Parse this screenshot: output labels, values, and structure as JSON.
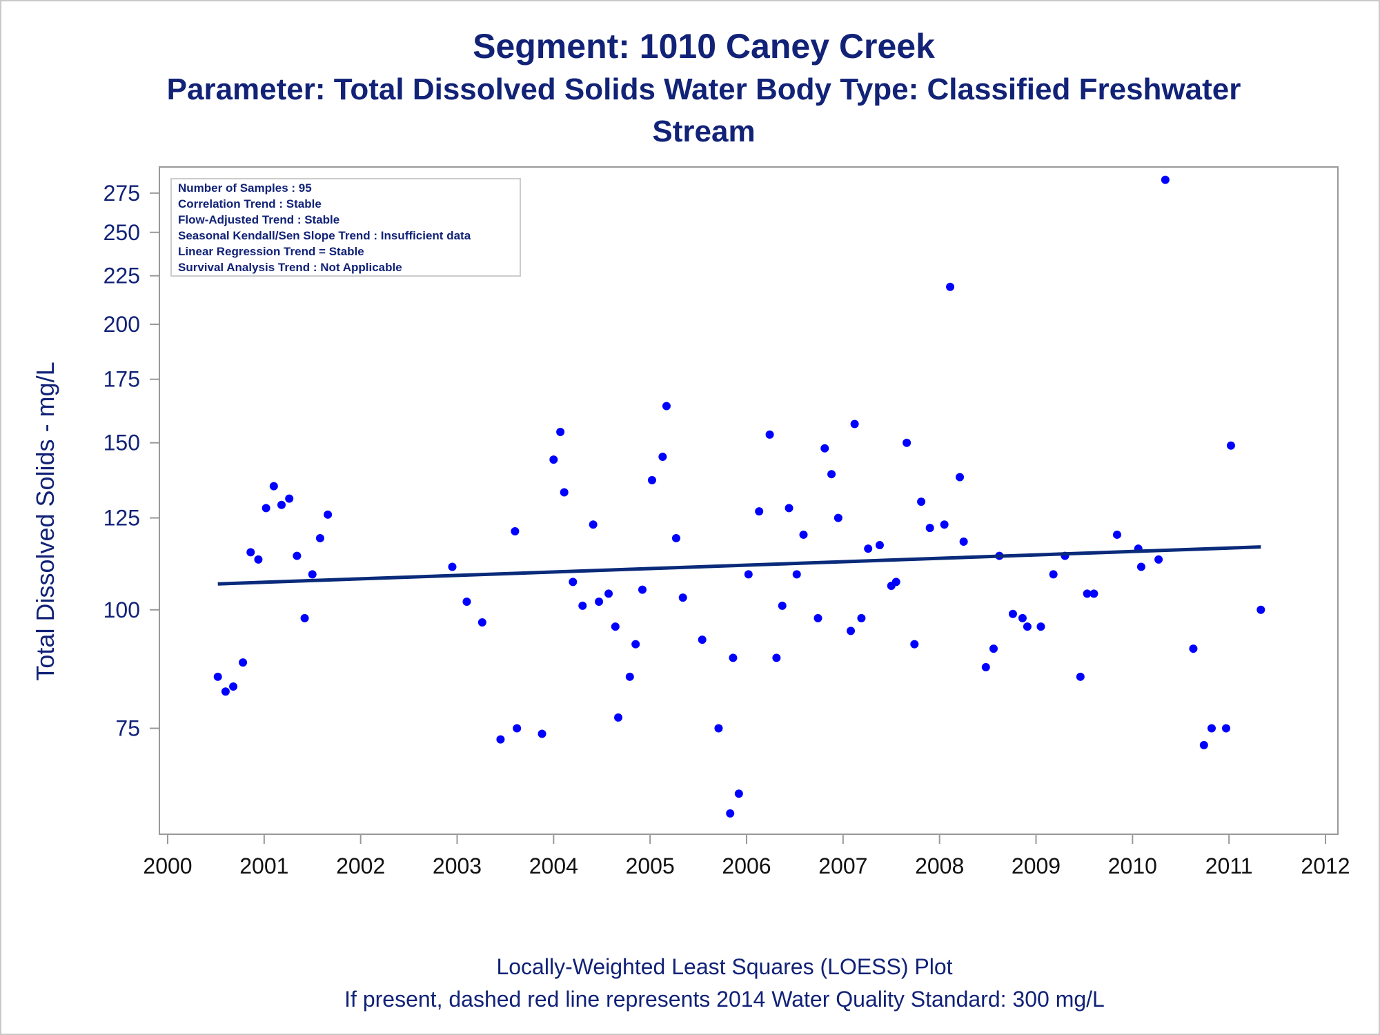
{
  "titles": {
    "line1": "Segment: 1010  Caney Creek",
    "line2": "Parameter: Total Dissolved Solids   Water Body Type: Classified Freshwater",
    "line3": "Stream"
  },
  "footnotes": {
    "line1": "Locally-Weighted Least Squares (LOESS) Plot",
    "line2": "If present, dashed red line represents 2014 Water Quality Standard: 300   mg/L"
  },
  "stats_box": [
    "Number of Samples : 95",
    "Correlation Trend : Stable",
    "Flow-Adjusted Trend : Stable",
    "Seasonal Kendall/Sen Slope Trend : Insufficient data",
    "Linear Regression Trend = Stable",
    "Survival Analysis Trend : Not Applicable"
  ],
  "colors": {
    "text": "#112277",
    "points": "#0000ff",
    "trend_line": "#0a2a7a",
    "axis": "#999999"
  },
  "chart_data": {
    "type": "scatter",
    "xlabel": "",
    "ylabel": "Total Dissolved Solids - mg/L",
    "y_scale": "log",
    "xlim": [
      2000,
      2012
    ],
    "ylim": [
      58,
      293
    ],
    "x_ticks": [
      2000,
      2001,
      2002,
      2003,
      2004,
      2005,
      2006,
      2007,
      2008,
      2009,
      2010,
      2011,
      2012
    ],
    "y_ticks": [
      75,
      100,
      125,
      150,
      175,
      200,
      225,
      250,
      275
    ],
    "grid": false,
    "points": [
      {
        "x": 2000.52,
        "y": 85
      },
      {
        "x": 2000.6,
        "y": 82
      },
      {
        "x": 2000.68,
        "y": 83
      },
      {
        "x": 2000.78,
        "y": 88
      },
      {
        "x": 2000.86,
        "y": 115
      },
      {
        "x": 2000.94,
        "y": 113
      },
      {
        "x": 2001.02,
        "y": 128
      },
      {
        "x": 2001.1,
        "y": 135
      },
      {
        "x": 2001.18,
        "y": 129
      },
      {
        "x": 2001.26,
        "y": 131
      },
      {
        "x": 2001.34,
        "y": 114
      },
      {
        "x": 2001.42,
        "y": 98
      },
      {
        "x": 2001.5,
        "y": 109
      },
      {
        "x": 2001.58,
        "y": 119
      },
      {
        "x": 2001.66,
        "y": 126
      },
      {
        "x": 2002.95,
        "y": 111
      },
      {
        "x": 2003.1,
        "y": 102
      },
      {
        "x": 2003.26,
        "y": 97
      },
      {
        "x": 2003.45,
        "y": 73
      },
      {
        "x": 2003.6,
        "y": 121
      },
      {
        "x": 2003.62,
        "y": 75
      },
      {
        "x": 2003.88,
        "y": 74
      },
      {
        "x": 2004.0,
        "y": 144
      },
      {
        "x": 2004.07,
        "y": 154
      },
      {
        "x": 2004.11,
        "y": 133
      },
      {
        "x": 2004.2,
        "y": 107
      },
      {
        "x": 2004.3,
        "y": 101
      },
      {
        "x": 2004.41,
        "y": 123
      },
      {
        "x": 2004.47,
        "y": 102
      },
      {
        "x": 2004.57,
        "y": 104
      },
      {
        "x": 2004.64,
        "y": 96
      },
      {
        "x": 2004.67,
        "y": 77
      },
      {
        "x": 2004.79,
        "y": 85
      },
      {
        "x": 2004.85,
        "y": 92
      },
      {
        "x": 2004.92,
        "y": 105
      },
      {
        "x": 2005.02,
        "y": 137
      },
      {
        "x": 2005.13,
        "y": 145
      },
      {
        "x": 2005.17,
        "y": 164
      },
      {
        "x": 2005.27,
        "y": 119
      },
      {
        "x": 2005.34,
        "y": 103
      },
      {
        "x": 2005.54,
        "y": 93
      },
      {
        "x": 2005.71,
        "y": 75
      },
      {
        "x": 2005.86,
        "y": 89
      },
      {
        "x": 2005.92,
        "y": 64
      },
      {
        "x": 2005.83,
        "y": 61
      },
      {
        "x": 2006.02,
        "y": 109
      },
      {
        "x": 2006.13,
        "y": 127
      },
      {
        "x": 2006.24,
        "y": 153
      },
      {
        "x": 2006.31,
        "y": 89
      },
      {
        "x": 2006.37,
        "y": 101
      },
      {
        "x": 2006.44,
        "y": 128
      },
      {
        "x": 2006.52,
        "y": 109
      },
      {
        "x": 2006.59,
        "y": 120
      },
      {
        "x": 2006.74,
        "y": 98
      },
      {
        "x": 2006.81,
        "y": 148
      },
      {
        "x": 2006.88,
        "y": 139
      },
      {
        "x": 2006.95,
        "y": 125
      },
      {
        "x": 2007.08,
        "y": 95
      },
      {
        "x": 2007.12,
        "y": 157
      },
      {
        "x": 2007.19,
        "y": 98
      },
      {
        "x": 2007.26,
        "y": 116
      },
      {
        "x": 2007.38,
        "y": 117
      },
      {
        "x": 2007.5,
        "y": 106
      },
      {
        "x": 2007.55,
        "y": 107
      },
      {
        "x": 2007.66,
        "y": 150
      },
      {
        "x": 2007.74,
        "y": 92
      },
      {
        "x": 2007.81,
        "y": 130
      },
      {
        "x": 2007.9,
        "y": 122
      },
      {
        "x": 2008.05,
        "y": 123
      },
      {
        "x": 2008.11,
        "y": 219
      },
      {
        "x": 2008.21,
        "y": 138
      },
      {
        "x": 2008.25,
        "y": 118
      },
      {
        "x": 2008.48,
        "y": 87
      },
      {
        "x": 2008.56,
        "y": 91
      },
      {
        "x": 2008.62,
        "y": 114
      },
      {
        "x": 2008.76,
        "y": 99
      },
      {
        "x": 2008.86,
        "y": 98
      },
      {
        "x": 2008.91,
        "y": 96
      },
      {
        "x": 2009.05,
        "y": 96
      },
      {
        "x": 2009.18,
        "y": 109
      },
      {
        "x": 2009.3,
        "y": 114
      },
      {
        "x": 2009.46,
        "y": 85
      },
      {
        "x": 2009.53,
        "y": 104
      },
      {
        "x": 2009.6,
        "y": 104
      },
      {
        "x": 2009.84,
        "y": 120
      },
      {
        "x": 2010.06,
        "y": 116
      },
      {
        "x": 2010.09,
        "y": 111
      },
      {
        "x": 2010.27,
        "y": 113
      },
      {
        "x": 2010.34,
        "y": 284
      },
      {
        "x": 2010.63,
        "y": 91
      },
      {
        "x": 2010.74,
        "y": 72
      },
      {
        "x": 2010.82,
        "y": 75
      },
      {
        "x": 2010.97,
        "y": 75
      },
      {
        "x": 2011.02,
        "y": 149
      },
      {
        "x": 2011.33,
        "y": 100
      }
    ],
    "trend_line": {
      "name": "LOESS",
      "x": [
        2000.52,
        2011.33
      ],
      "y": [
        106.5,
        116.5
      ]
    }
  }
}
